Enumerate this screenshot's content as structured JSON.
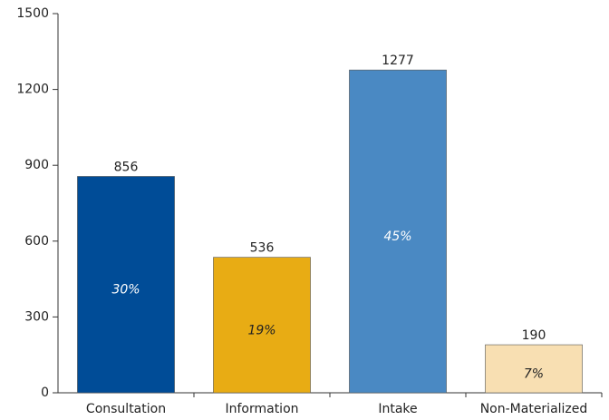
{
  "chart_data": {
    "type": "bar",
    "categories": [
      "Consultation",
      "Information",
      "Intake",
      "Non-Materialized"
    ],
    "values": [
      856,
      536,
      1277,
      190
    ],
    "colors": [
      "#004c97",
      "#e8ac14",
      "#4a89c3",
      "#f8dfb2"
    ],
    "share_labels": [
      "30%",
      "19%",
      "45%",
      "7%"
    ],
    "share_label_colors": [
      "#ffffff",
      "#222222",
      "#ffffff",
      "#222222"
    ],
    "ylim": [
      0,
      1500
    ],
    "yticks": [
      0,
      300,
      600,
      900,
      1200,
      1500
    ],
    "grid": false
  }
}
